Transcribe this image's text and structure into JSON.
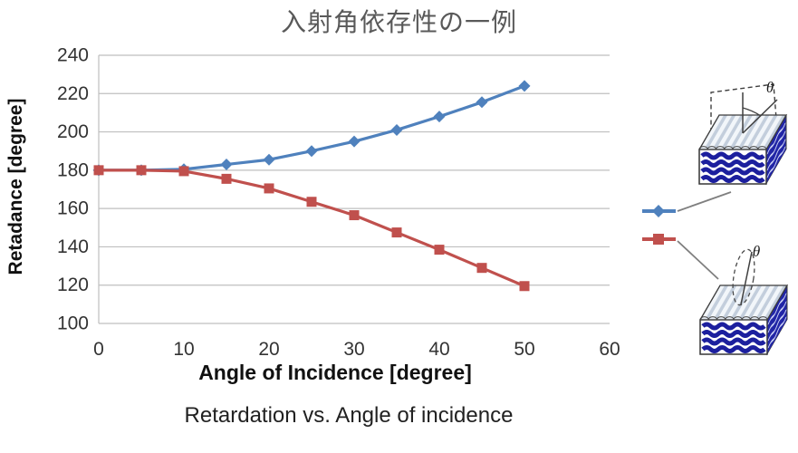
{
  "chart_data": {
    "type": "line",
    "title": "入射角依存性の一例",
    "xlabel": "Angle of Incidence [degree]",
    "ylabel": "Retadance [degree]",
    "caption": "Retardation vs. Angle of incidence",
    "xlim": [
      0,
      60
    ],
    "ylim": [
      100,
      240
    ],
    "xticks": [
      0,
      10,
      20,
      30,
      40,
      50,
      60
    ],
    "yticks": [
      100,
      120,
      140,
      160,
      180,
      200,
      220,
      240
    ],
    "grid": "horizontal gridlines, left axis border, no legend box",
    "legend_position": "right, pictorial (grating-sample drawings)",
    "x": [
      0,
      5,
      10,
      15,
      20,
      25,
      30,
      35,
      40,
      45,
      50
    ],
    "series": [
      {
        "name": "blue-diamond",
        "marker": "diamond",
        "color": "#4f81bd",
        "values": [
          180,
          180,
          180.5,
          183,
          185.5,
          190,
          195,
          201,
          208,
          215.5,
          224
        ]
      },
      {
        "name": "red-square",
        "marker": "square",
        "color": "#c0504d",
        "values": [
          180,
          180,
          179.5,
          175.5,
          170.5,
          163.5,
          156.5,
          147.5,
          138.5,
          129,
          119.5
        ]
      }
    ]
  },
  "legend": {
    "entries": [
      {
        "series": "blue-diamond",
        "theta_label": "θ"
      },
      {
        "series": "red-square",
        "theta_label": "θ"
      }
    ]
  }
}
